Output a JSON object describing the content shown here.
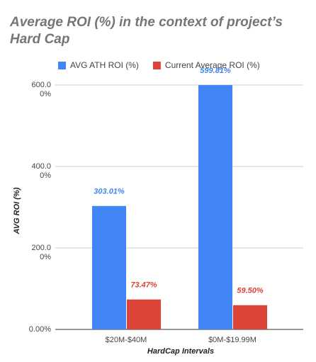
{
  "chart_data": {
    "type": "bar",
    "title": "Average ROI (%) in the context of project’s Hard Cap",
    "x_label": "HardCap Intervals",
    "y_label": "AVG ROI (%)",
    "categories": [
      "$20M-$40M",
      "$0M-$19.99M"
    ],
    "series": [
      {
        "name": "AVG ATH ROI (%)",
        "color": "#4285f4",
        "values": [
          303.01,
          599.81
        ],
        "value_labels": [
          "303.01%",
          "599.81%"
        ]
      },
      {
        "name": "Current Average ROI (%)",
        "color": "#db4437",
        "values": [
          73.47,
          59.5
        ],
        "value_labels": [
          "73.47%",
          "59.50%"
        ]
      }
    ],
    "ylim": [
      0,
      600
    ],
    "yticks": [
      {
        "value": 0,
        "label": "0.00%"
      },
      {
        "value": 200,
        "label": "200.00%"
      },
      {
        "value": 400,
        "label": "400.00%"
      },
      {
        "value": 600,
        "label": "600.00%"
      }
    ],
    "grid": true,
    "legend": "top"
  }
}
